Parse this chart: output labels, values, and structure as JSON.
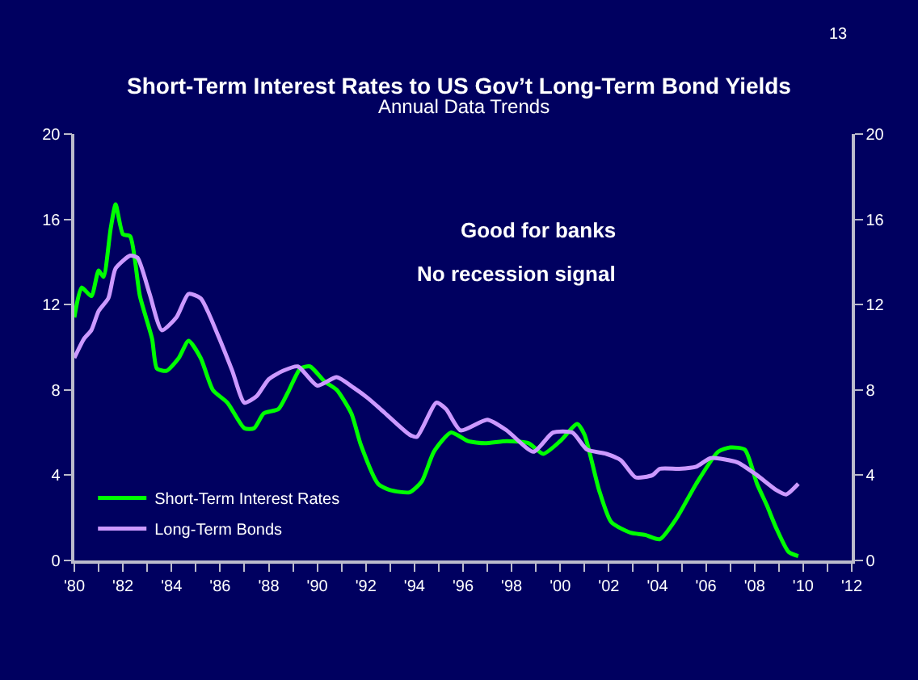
{
  "chart_data": {
    "type": "line",
    "title": "Short-Term Interest Rates to US Gov’t Long-Term Bond Yields",
    "subtitle": "Annual Data Trends",
    "annotations": [
      "13",
      "Good for banks",
      "No recession signal"
    ],
    "series": [
      {
        "name": "Short-Term Interest Rates",
        "color": "#00ff00",
        "x": [
          1980.0,
          1980.3,
          1980.7,
          1981.0,
          1981.2,
          1981.5,
          1981.7,
          1982.0,
          1982.3,
          1982.7,
          1983.2,
          1983.4,
          1983.8,
          1984.3,
          1984.7,
          1985.2,
          1985.7,
          1986.3,
          1987.0,
          1987.4,
          1987.8,
          1988.4,
          1988.8,
          1989.3,
          1989.7,
          1990.3,
          1990.8,
          1991.4,
          1991.8,
          1992.5,
          1993.0,
          1993.8,
          1994.3,
          1994.8,
          1995.5,
          1996.2,
          1996.9,
          1997.8,
          1998.7,
          1999.3,
          2000.0,
          2000.7,
          2001.0,
          2001.6,
          2002.1,
          2002.9,
          2003.5,
          2004.1,
          2004.8,
          2005.6,
          2006.5,
          2007.0,
          2007.6,
          2008.1,
          2008.5,
          2008.9,
          2009.4,
          2009.8
        ],
        "values": [
          11.4,
          12.8,
          12.4,
          13.6,
          13.3,
          15.6,
          16.7,
          15.3,
          15.2,
          12.4,
          10.4,
          9.0,
          8.9,
          9.5,
          10.3,
          9.5,
          8.0,
          7.4,
          6.2,
          6.2,
          6.9,
          7.1,
          7.9,
          9.0,
          9.1,
          8.4,
          8.0,
          6.9,
          5.4,
          3.6,
          3.3,
          3.2,
          3.7,
          5.1,
          6.0,
          5.6,
          5.5,
          5.6,
          5.5,
          5.0,
          5.6,
          6.4,
          5.9,
          3.3,
          1.8,
          1.3,
          1.2,
          1.0,
          2.0,
          3.6,
          5.1,
          5.3,
          5.2,
          3.6,
          2.6,
          1.5,
          0.4,
          0.2
        ]
      },
      {
        "name": "Long-Term Bonds",
        "color": "#cc99ff",
        "x": [
          1980.0,
          1980.4,
          1980.7,
          1981.0,
          1981.4,
          1981.7,
          1982.3,
          1982.6,
          1983.1,
          1983.6,
          1984.2,
          1984.7,
          1985.2,
          1985.9,
          1986.5,
          1987.0,
          1987.5,
          1988.0,
          1988.6,
          1989.2,
          1990.0,
          1990.8,
          1991.5,
          1992.1,
          1992.7,
          1993.8,
          1994.1,
          1994.9,
          1995.3,
          1995.9,
          1997.0,
          1997.8,
          1998.9,
          1999.7,
          2000.5,
          2001.1,
          2001.9,
          2002.5,
          2003.1,
          2003.8,
          2004.1,
          2004.9,
          2005.6,
          2006.2,
          2007.3,
          2008.1,
          2008.9,
          2009.3,
          2009.8
        ],
        "values": [
          9.5,
          10.4,
          10.8,
          11.7,
          12.3,
          13.7,
          14.3,
          14.2,
          12.5,
          10.8,
          11.4,
          12.5,
          12.3,
          10.6,
          8.9,
          7.4,
          7.7,
          8.5,
          8.9,
          9.1,
          8.2,
          8.6,
          8.1,
          7.6,
          7.0,
          5.9,
          5.8,
          7.4,
          7.1,
          6.1,
          6.6,
          6.1,
          5.1,
          6.0,
          6.0,
          5.2,
          5.0,
          4.7,
          3.9,
          4.0,
          4.3,
          4.3,
          4.4,
          4.8,
          4.6,
          4.0,
          3.3,
          3.1,
          3.6
        ]
      }
    ],
    "xlim": [
      1980,
      2012
    ],
    "xticks": [
      {
        "value": 1980,
        "label": "'80"
      },
      {
        "value": 1981,
        "label": null
      },
      {
        "value": 1982,
        "label": "'82"
      },
      {
        "value": 1983,
        "label": null
      },
      {
        "value": 1984,
        "label": "'84"
      },
      {
        "value": 1985,
        "label": null
      },
      {
        "value": 1986,
        "label": "'86"
      },
      {
        "value": 1987,
        "label": null
      },
      {
        "value": 1988,
        "label": "'88"
      },
      {
        "value": 1989,
        "label": null
      },
      {
        "value": 1990,
        "label": "'90"
      },
      {
        "value": 1991,
        "label": null
      },
      {
        "value": 1992,
        "label": "'92"
      },
      {
        "value": 1993,
        "label": null
      },
      {
        "value": 1994,
        "label": "'94"
      },
      {
        "value": 1995,
        "label": null
      },
      {
        "value": 1996,
        "label": "'96"
      },
      {
        "value": 1997,
        "label": null
      },
      {
        "value": 1998,
        "label": "'98"
      },
      {
        "value": 1999,
        "label": null
      },
      {
        "value": 2000,
        "label": "'00"
      },
      {
        "value": 2001,
        "label": null
      },
      {
        "value": 2002,
        "label": "'02"
      },
      {
        "value": 2003,
        "label": null
      },
      {
        "value": 2004,
        "label": "'04"
      },
      {
        "value": 2005,
        "label": null
      },
      {
        "value": 2006,
        "label": "'06"
      },
      {
        "value": 2007,
        "label": null
      },
      {
        "value": 2008,
        "label": "'08"
      },
      {
        "value": 2009,
        "label": null
      },
      {
        "value": 2010,
        "label": "'10"
      },
      {
        "value": 2011,
        "label": null
      },
      {
        "value": 2012,
        "label": "'12"
      }
    ],
    "ylim": [
      0,
      20
    ],
    "yticks": [
      0,
      4,
      8,
      12,
      16,
      20
    ],
    "y2lim": [
      0,
      20
    ],
    "y2ticks": [
      0,
      4,
      8,
      12,
      16,
      20
    ],
    "grid": false,
    "legend": "bottom left",
    "marker": "none",
    "line_style": "solid"
  }
}
